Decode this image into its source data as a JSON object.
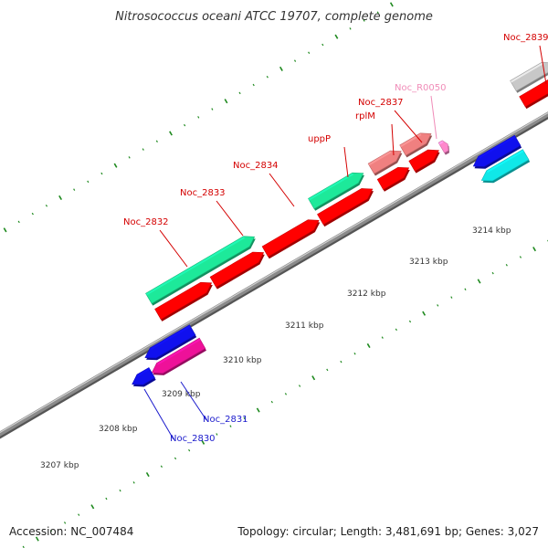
{
  "title": "Nitrosococcus oceani ATCC 19707, complete genome",
  "footer": {
    "accession": "Accession: NC_007484",
    "summary": "Topology: circular; Length: 3,481,691 bp; Genes: 3,027"
  },
  "colors": {
    "backbone": "#8a8a8a",
    "tick_mark": "#1f8a1f",
    "label_red": "#d40000",
    "label_blue": "#1a1acc",
    "label_pink": "#f08cb8",
    "gene_red": "#ff0000",
    "gene_green": "#1de99a",
    "gene_salmon": "#f08080",
    "gene_blue": "#1010ee",
    "gene_cyan": "#10e8e8",
    "gene_magenta": "#ee1199",
    "gene_gray": "#c8c8c8",
    "gene_pink": "#ff88cc"
  },
  "kbp_labels": [
    "3207 kbp",
    "3208 kbp",
    "3209 kbp",
    "3210 kbp",
    "3211 kbp",
    "3212 kbp",
    "3213 kbp",
    "3214 kbp"
  ],
  "gene_labels": [
    {
      "text": "Noc_2832",
      "color": "label_red"
    },
    {
      "text": "Noc_2833",
      "color": "label_red"
    },
    {
      "text": "Noc_2834",
      "color": "label_red"
    },
    {
      "text": "uppP",
      "color": "label_red"
    },
    {
      "text": "rplM",
      "color": "label_red"
    },
    {
      "text": "Noc_2837",
      "color": "label_red"
    },
    {
      "text": "Noc_R0050",
      "color": "label_pink"
    },
    {
      "text": "Noc_2839",
      "color": "label_red"
    },
    {
      "text": "Noc_2831",
      "color": "label_blue"
    },
    {
      "text": "Noc_2830",
      "color": "label_blue"
    }
  ]
}
